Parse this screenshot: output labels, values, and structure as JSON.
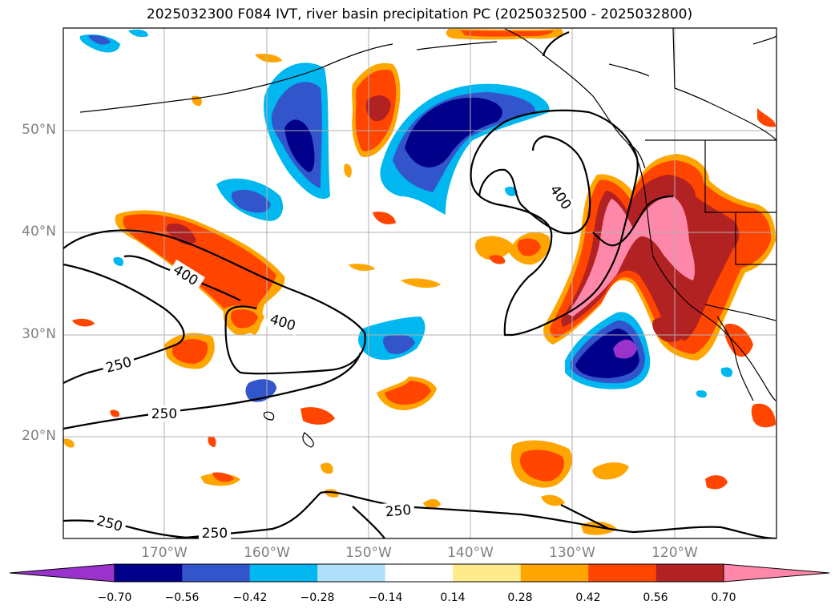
{
  "title": "2025032300 F084 IVT, river basin precipitation PC (2025032500 - 2025032800)",
  "lat_labels": [
    "50°N",
    "40°N",
    "30°N",
    "20°N"
  ],
  "lon_labels": [
    "170°W",
    "160°W",
    "150°W",
    "140°W",
    "130°W",
    "120°W"
  ],
  "contour_labels": [
    "400",
    "400",
    "400",
    "250",
    "250",
    "250",
    "250",
    "250"
  ],
  "colorbar": {
    "ticks": [
      "−0.70",
      "−0.56",
      "−0.42",
      "−0.28",
      "−0.14",
      "0.14",
      "0.28",
      "0.42",
      "0.56",
      "0.70"
    ],
    "colors": [
      "#9933cc",
      "#00008b",
      "#3355cc",
      "#00b7f0",
      "#b0e0fa",
      "#ffffff",
      "#ffeb8c",
      "#ffa500",
      "#ff4500",
      "#b22222",
      "#ff88aa"
    ]
  }
}
